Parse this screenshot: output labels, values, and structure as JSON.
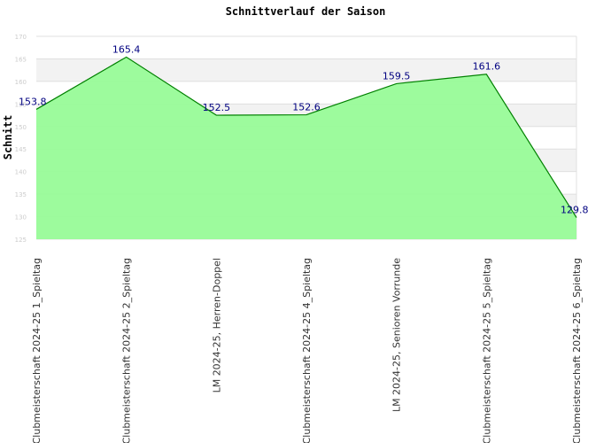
{
  "chart_data": {
    "type": "area",
    "title": "Schnittverlauf der Saison",
    "xlabel": "",
    "ylabel": "Schnitt",
    "ylim": [
      125,
      170
    ],
    "yticks": [
      125,
      130,
      135,
      140,
      145,
      150,
      155,
      160,
      165,
      170
    ],
    "grid": true,
    "legend": "none",
    "categories": [
      "Clubmeisterschaft 2024-25   1_Spieltag",
      "Clubmeisterschaft 2024-25   2_Spieltag",
      "LM 2024-25, Herren-Doppel",
      "Clubmeisterschaft 2024-25   4_Spieltag",
      "LM 2024-25, Senioren Vorrunde",
      "Clubmeisterschaft 2024-25   5_Spieltag",
      "Clubmeisterschaft 2024-25   6_Spieltag"
    ],
    "series": [
      {
        "values": [
          153.8,
          165.4,
          152.5,
          152.6,
          159.5,
          161.6,
          129.8
        ]
      }
    ],
    "data_labels": [
      "153.8",
      "165.4",
      "152.5",
      "152.6",
      "159.5",
      "161.6",
      "129.8"
    ],
    "colors": {
      "fill": "#98fb98",
      "line": "#008000",
      "label": "#000080",
      "band": "#f2f2f2",
      "grid": "#e0e0e0"
    }
  }
}
